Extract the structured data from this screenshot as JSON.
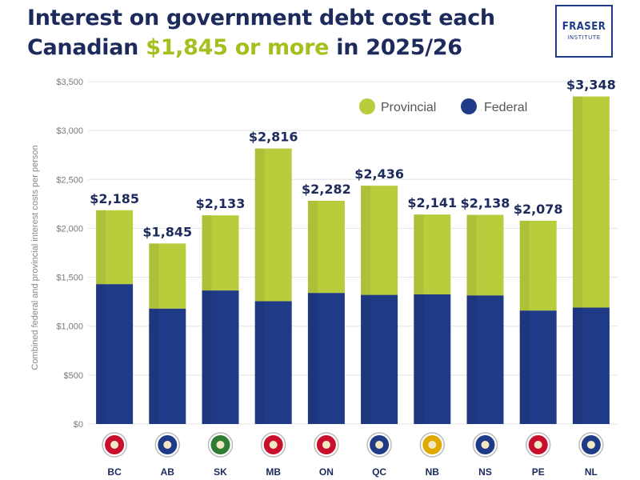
{
  "header": {
    "title_line1": "Interest on government debt cost each",
    "title_line2_pre": "Canadian ",
    "title_line2_accent": "$1,845 or more",
    "title_line2_post": " in 2025/26"
  },
  "logo": {
    "line1": "FRASER",
    "line2": "INSTITUTE"
  },
  "colors": {
    "provincial": "#b8cc3c",
    "federal": "#1f3a86",
    "title": "#1c2a5c",
    "accent": "#a6bf1e"
  },
  "chart_data": {
    "type": "bar",
    "stacked": true,
    "title": "Interest on government debt cost each Canadian $1,845 or more in 2025/26",
    "ylabel": "Combined federal and provincial interest costs per person",
    "xlabel": "",
    "ylim": [
      0,
      3500
    ],
    "yticks": [
      0,
      500,
      1000,
      1500,
      2000,
      2500,
      3000,
      3500
    ],
    "ytick_labels": [
      "$0",
      "$500",
      "$1,000",
      "$1,500",
      "$2,000",
      "$2,500",
      "$3,000",
      "$3,500"
    ],
    "grid": true,
    "legend_position": "top-right",
    "categories": [
      "BC",
      "AB",
      "SK",
      "MB",
      "ON",
      "QC",
      "NB",
      "NS",
      "PE",
      "NL"
    ],
    "series": [
      {
        "name": "Federal",
        "values": [
          1430,
          1180,
          1365,
          1255,
          1340,
          1320,
          1325,
          1315,
          1160,
          1190
        ]
      },
      {
        "name": "Provincial",
        "values": [
          755,
          665,
          768,
          1561,
          942,
          1116,
          816,
          823,
          918,
          2158
        ]
      }
    ],
    "totals": [
      2185,
      1845,
      2133,
      2816,
      2282,
      2436,
      2141,
      2138,
      2078,
      3348
    ],
    "total_labels": [
      "$2,185",
      "$1,845",
      "$2,133",
      "$2,816",
      "$2,282",
      "$2,436",
      "$2,141",
      "$2,138",
      "$2,078",
      "$3,348"
    ],
    "legend": [
      {
        "name": "Provincial",
        "color": "#b8cc3c"
      },
      {
        "name": "Federal",
        "color": "#1f3a86"
      }
    ]
  }
}
